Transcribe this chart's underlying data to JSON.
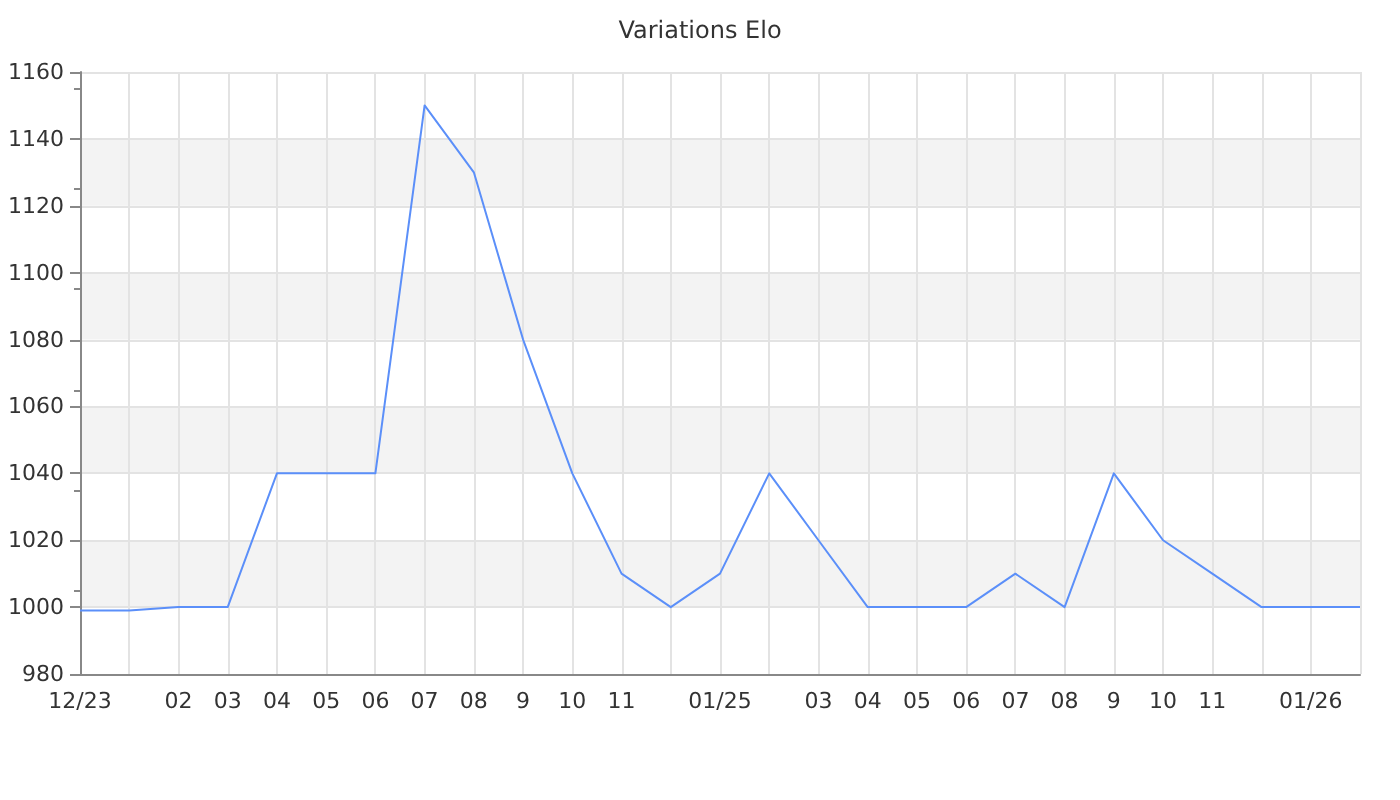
{
  "chart_data": {
    "type": "line",
    "title": "Variations Elo",
    "categories": [
      "12/23",
      null,
      "02",
      "03",
      "04",
      "05",
      "06",
      "07",
      "08",
      "9",
      "10",
      "11",
      null,
      "01/25",
      null,
      "03",
      "04",
      "05",
      "06",
      "07",
      "08",
      "9",
      "10",
      "11",
      null,
      "01/26",
      null
    ],
    "series": [
      {
        "color": "#5b8ff9",
        "values": [
          999,
          999,
          1000,
          1000,
          1040,
          1040,
          1040,
          1150,
          1130,
          1080,
          1040,
          1010,
          1000,
          1010,
          1040,
          1020,
          1000,
          1000,
          1000,
          1010,
          1000,
          1040,
          1020,
          1010,
          1000,
          1000,
          1000
        ]
      }
    ],
    "ylim": [
      980,
      1160
    ],
    "yticks": [
      980,
      1000,
      1020,
      1040,
      1060,
      1080,
      1100,
      1120,
      1140,
      1160
    ],
    "grid": true,
    "marker": "none",
    "line_style": "solid"
  }
}
